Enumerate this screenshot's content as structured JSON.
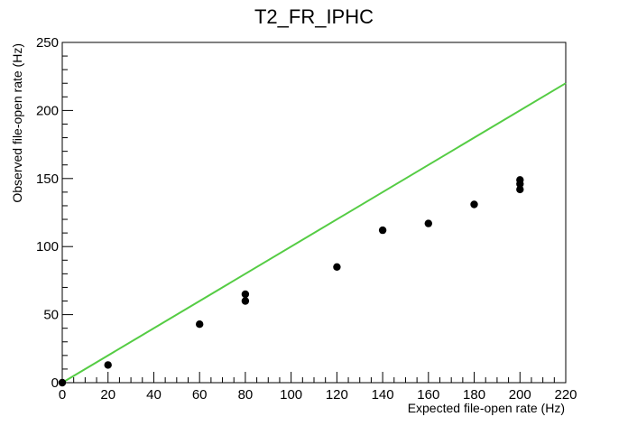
{
  "chart_data": {
    "type": "scatter",
    "title": "T2_FR_IPHC",
    "xlabel": "Expected file-open rate (Hz)",
    "ylabel": "Observed file-open rate (Hz)",
    "xlim": [
      0,
      220
    ],
    "ylim": [
      0,
      250
    ],
    "x_ticks": [
      0,
      20,
      40,
      60,
      80,
      100,
      120,
      140,
      160,
      180,
      200,
      220
    ],
    "y_ticks": [
      0,
      50,
      100,
      150,
      200,
      250
    ],
    "grid": false,
    "series": [
      {
        "type": "scatter",
        "color": "#000000",
        "points": [
          [
            0,
            0
          ],
          [
            20,
            13
          ],
          [
            60,
            43
          ],
          [
            80,
            60
          ],
          [
            80,
            65
          ],
          [
            120,
            85
          ],
          [
            140,
            112
          ],
          [
            160,
            117
          ],
          [
            180,
            131
          ],
          [
            200,
            142
          ],
          [
            200,
            146
          ],
          [
            200,
            149
          ]
        ]
      },
      {
        "type": "line",
        "color": "#55cc44",
        "points": [
          [
            0,
            0
          ],
          [
            220,
            220
          ]
        ]
      }
    ]
  }
}
